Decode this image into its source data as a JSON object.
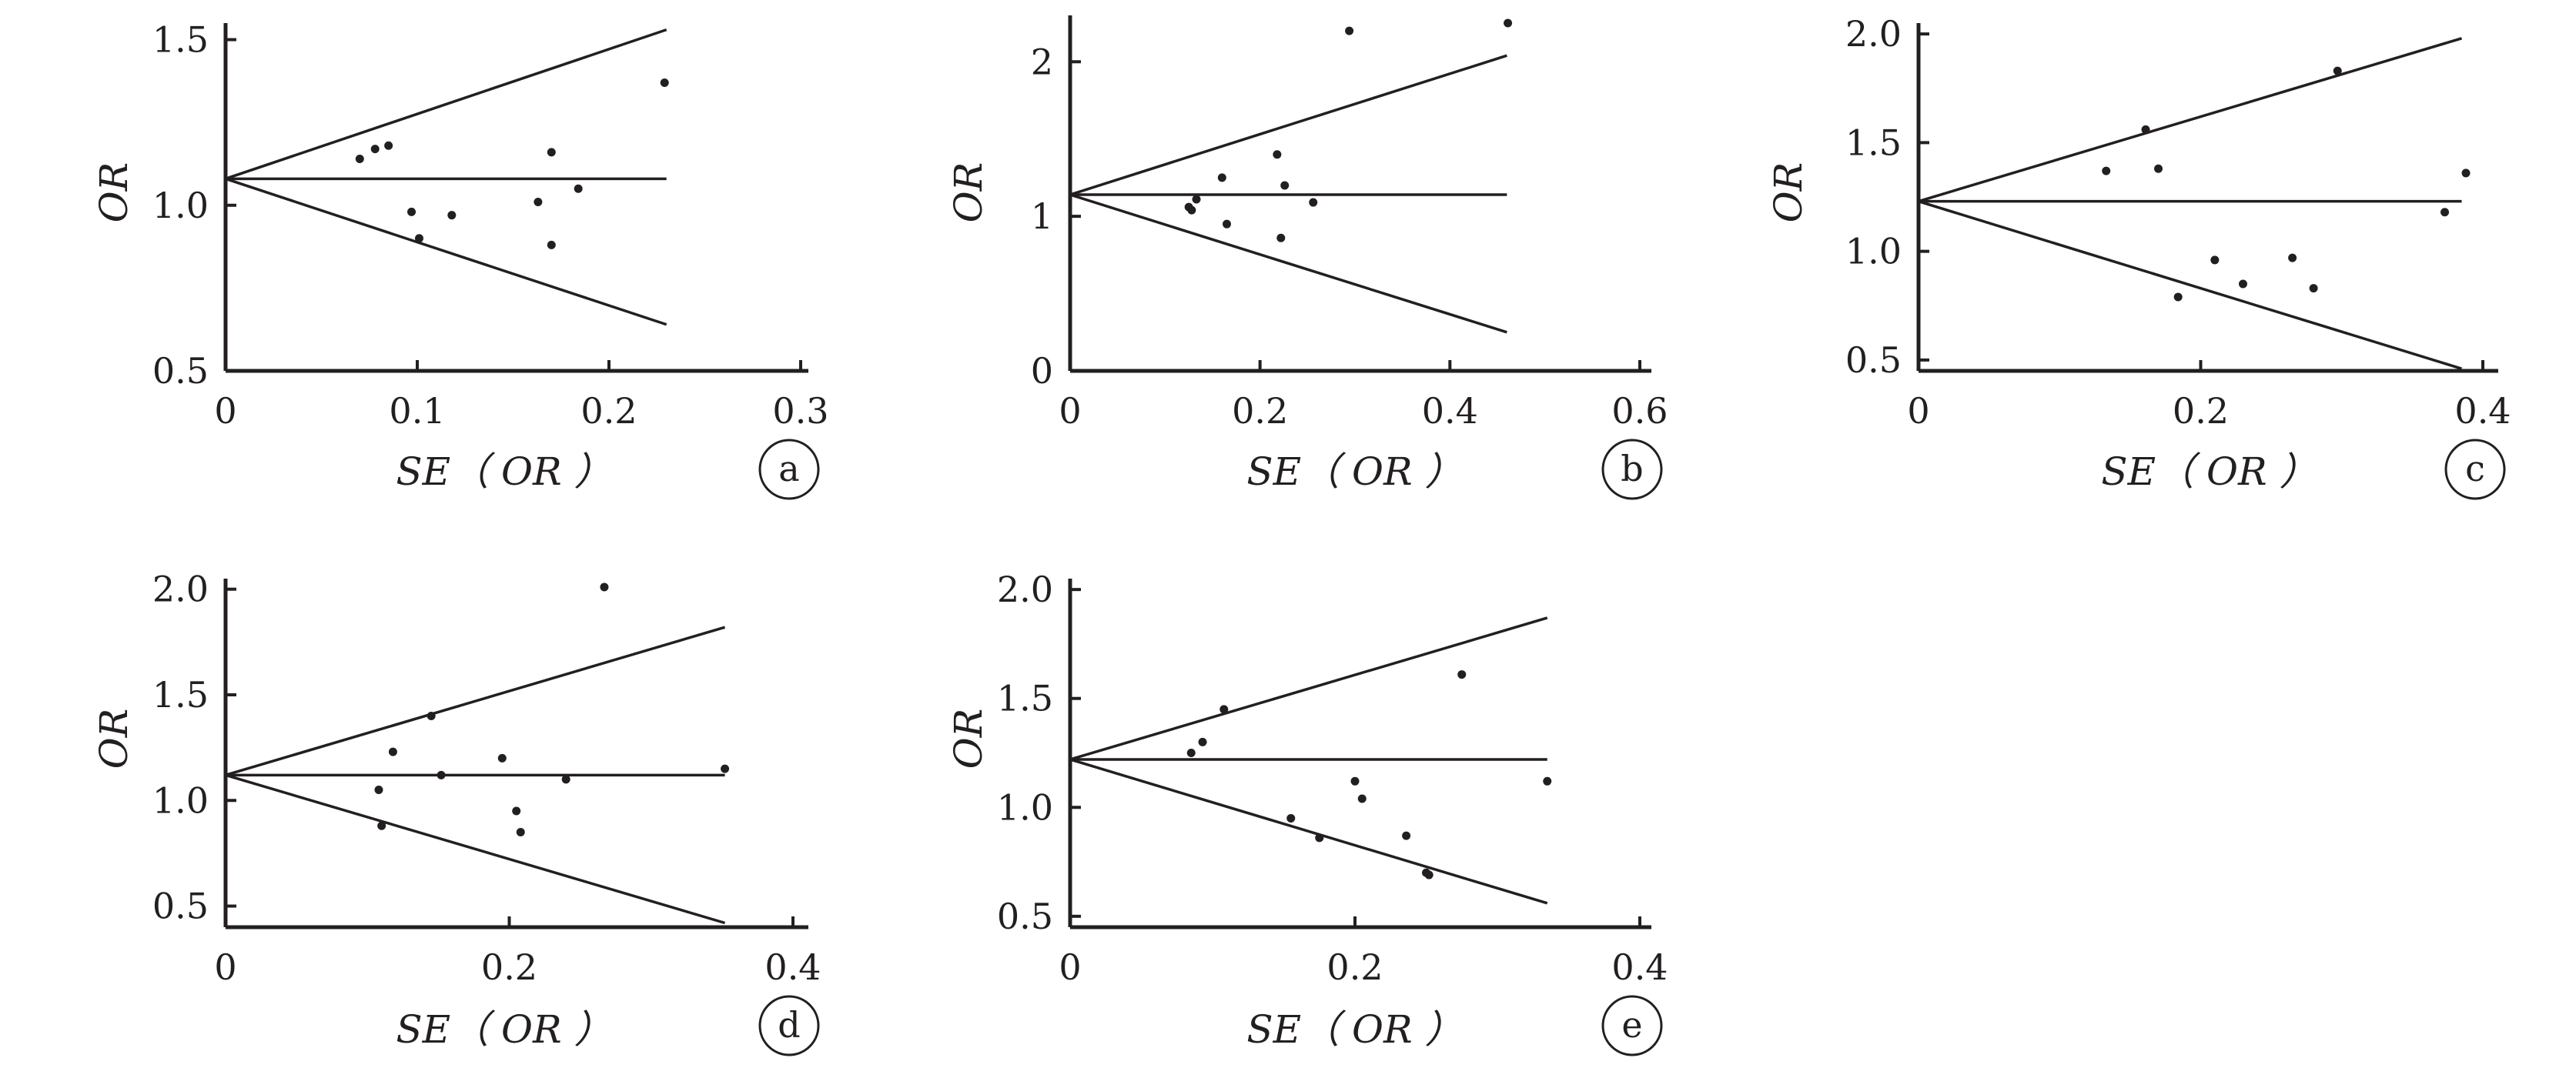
{
  "figure": {
    "panels": [
      {
        "id": "a",
        "label": "a",
        "xlabel": "SE（ OR ）",
        "ylabel": "OR"
      },
      {
        "id": "b",
        "label": "b",
        "xlabel": "SE（ OR ）",
        "ylabel": "OR"
      },
      {
        "id": "c",
        "label": "c",
        "xlabel": "SE（ OR ）",
        "ylabel": "OR"
      },
      {
        "id": "d",
        "label": "d",
        "xlabel": "SE（ OR ）",
        "ylabel": "OR"
      },
      {
        "id": "e",
        "label": "e",
        "xlabel": "SE（ OR ）",
        "ylabel": "OR"
      }
    ]
  },
  "chart_data": [
    {
      "panel": "a",
      "type": "scatter",
      "subtype": "funnel plot",
      "xlabel": "SE（ OR ）",
      "ylabel": "OR",
      "xlim": [
        0,
        0.3
      ],
      "ylim": [
        0.5,
        1.55
      ],
      "xticks": [
        0,
        0.1,
        0.2,
        0.3
      ],
      "xtick_labels": [
        "0",
        "0.1",
        "0.2",
        "0.3"
      ],
      "yticks": [
        0.5,
        1.0,
        1.5
      ],
      "ytick_labels": [
        "0.5",
        "1.0",
        "1.5"
      ],
      "pooled_or": 1.08,
      "funnel_end": {
        "se": 0.23,
        "upper": 1.53,
        "lower": 0.64
      },
      "points": [
        {
          "se": 0.07,
          "or": 1.14
        },
        {
          "se": 0.078,
          "or": 1.17
        },
        {
          "se": 0.085,
          "or": 1.18
        },
        {
          "se": 0.097,
          "or": 0.98
        },
        {
          "se": 0.101,
          "or": 0.9
        },
        {
          "se": 0.118,
          "or": 0.97
        },
        {
          "se": 0.163,
          "or": 1.01
        },
        {
          "se": 0.17,
          "or": 1.16
        },
        {
          "se": 0.17,
          "or": 0.88
        },
        {
          "se": 0.184,
          "or": 1.05
        },
        {
          "se": 0.229,
          "or": 1.37
        }
      ]
    },
    {
      "panel": "b",
      "type": "scatter",
      "subtype": "funnel plot",
      "xlabel": "SE（ OR ）",
      "ylabel": "OR",
      "xlim": [
        0,
        0.6
      ],
      "ylim": [
        0,
        2.3
      ],
      "xticks": [
        0,
        0.2,
        0.4,
        0.6
      ],
      "xtick_labels": [
        "0",
        "0.2",
        "0.4",
        "0.6"
      ],
      "yticks": [
        0,
        1,
        2
      ],
      "ytick_labels": [
        "0",
        "1",
        "2"
      ],
      "pooled_or": 1.14,
      "funnel_end": {
        "se": 0.46,
        "upper": 2.04,
        "lower": 0.25
      },
      "points": [
        {
          "se": 0.125,
          "or": 1.06
        },
        {
          "se": 0.128,
          "or": 1.04
        },
        {
          "se": 0.133,
          "or": 1.11
        },
        {
          "se": 0.16,
          "or": 1.25
        },
        {
          "se": 0.165,
          "or": 0.95
        },
        {
          "se": 0.218,
          "or": 1.4
        },
        {
          "se": 0.222,
          "or": 0.86
        },
        {
          "se": 0.226,
          "or": 1.2
        },
        {
          "se": 0.256,
          "or": 1.09
        },
        {
          "se": 0.294,
          "or": 2.2
        },
        {
          "se": 0.461,
          "or": 2.25
        }
      ]
    },
    {
      "panel": "c",
      "type": "scatter",
      "subtype": "funnel plot",
      "xlabel": "SE（ OR ）",
      "ylabel": "OR",
      "xlim": [
        0,
        0.4
      ],
      "ylim": [
        0.45,
        2.05
      ],
      "xticks": [
        0,
        0.2,
        0.4
      ],
      "xtick_labels": [
        "0",
        "0.2",
        "0.4"
      ],
      "yticks": [
        0.5,
        1.0,
        1.5,
        2.0
      ],
      "ytick_labels": [
        "0.5",
        "1.0",
        "1.5",
        "2.0"
      ],
      "pooled_or": 1.23,
      "funnel_end": {
        "se": 0.385,
        "upper": 1.98,
        "lower": 0.46
      },
      "points": [
        {
          "se": 0.133,
          "or": 1.37
        },
        {
          "se": 0.161,
          "or": 1.56
        },
        {
          "se": 0.17,
          "or": 1.38
        },
        {
          "se": 0.184,
          "or": 0.79
        },
        {
          "se": 0.21,
          "or": 0.96
        },
        {
          "se": 0.23,
          "or": 0.85
        },
        {
          "se": 0.265,
          "or": 0.97
        },
        {
          "se": 0.28,
          "or": 0.83
        },
        {
          "se": 0.297,
          "or": 1.83
        },
        {
          "se": 0.373,
          "or": 1.18
        },
        {
          "se": 0.388,
          "or": 1.36
        }
      ]
    },
    {
      "panel": "d",
      "type": "scatter",
      "subtype": "funnel plot",
      "xlabel": "SE（ OR ）",
      "ylabel": "OR",
      "xlim": [
        0,
        0.4
      ],
      "ylim": [
        0.4,
        2.05
      ],
      "xticks": [
        0,
        0.2,
        0.4
      ],
      "xtick_labels": [
        "0",
        "0.2",
        "0.4"
      ],
      "yticks": [
        0.5,
        1.0,
        1.5,
        2.0
      ],
      "ytick_labels": [
        "0.5",
        "1.0",
        "1.5",
        "2.0"
      ],
      "pooled_or": 1.12,
      "funnel_end": {
        "se": 0.352,
        "upper": 1.82,
        "lower": 0.42
      },
      "points": [
        {
          "se": 0.108,
          "or": 1.05
        },
        {
          "se": 0.11,
          "or": 0.88
        },
        {
          "se": 0.118,
          "or": 1.23
        },
        {
          "se": 0.145,
          "or": 1.4
        },
        {
          "se": 0.152,
          "or": 1.12
        },
        {
          "se": 0.195,
          "or": 1.2
        },
        {
          "se": 0.205,
          "or": 0.95
        },
        {
          "se": 0.208,
          "or": 0.85
        },
        {
          "se": 0.24,
          "or": 1.1
        },
        {
          "se": 0.267,
          "or": 2.01
        },
        {
          "se": 0.352,
          "or": 1.15
        }
      ]
    },
    {
      "panel": "e",
      "type": "scatter",
      "subtype": "funnel plot",
      "xlabel": "SE（ OR ）",
      "ylabel": "OR",
      "xlim": [
        0,
        0.4
      ],
      "ylim": [
        0.45,
        2.05
      ],
      "xticks": [
        0,
        0.2,
        0.4
      ],
      "xtick_labels": [
        "0",
        "0.2",
        "0.4"
      ],
      "yticks": [
        0.5,
        1.0,
        1.5,
        2.0
      ],
      "ytick_labels": [
        "0.5",
        "1.0",
        "1.5",
        "2.0"
      ],
      "pooled_or": 1.22,
      "funnel_end": {
        "se": 0.335,
        "upper": 1.87,
        "lower": 0.56
      },
      "points": [
        {
          "se": 0.085,
          "or": 1.25
        },
        {
          "se": 0.093,
          "or": 1.3
        },
        {
          "se": 0.108,
          "or": 1.45
        },
        {
          "se": 0.155,
          "or": 0.95
        },
        {
          "se": 0.175,
          "or": 0.86
        },
        {
          "se": 0.2,
          "or": 1.12
        },
        {
          "se": 0.205,
          "or": 1.04
        },
        {
          "se": 0.236,
          "or": 0.87
        },
        {
          "se": 0.25,
          "or": 0.7
        },
        {
          "se": 0.252,
          "or": 0.69
        },
        {
          "se": 0.275,
          "or": 1.61
        },
        {
          "se": 0.335,
          "or": 1.12
        }
      ]
    }
  ]
}
